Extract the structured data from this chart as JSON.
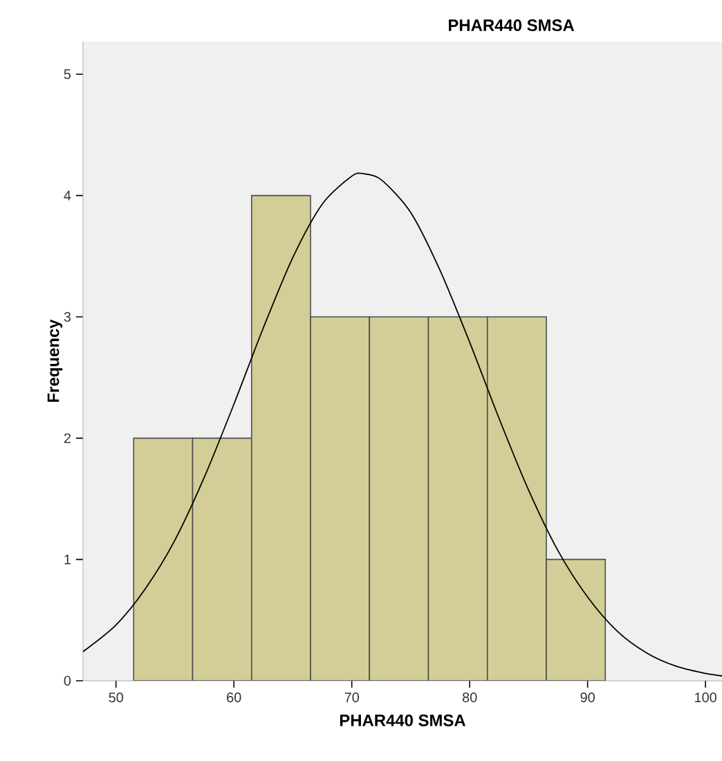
{
  "chart_data": {
    "type": "histogram",
    "title": "PHAR440 SMSA",
    "xlabel": "PHAR440 SMSA",
    "ylabel": "Frequency",
    "xlim": [
      47.2,
      101.4
    ],
    "xticks": [
      50,
      60,
      70,
      80,
      90,
      100
    ],
    "ylim": [
      0,
      5.27
    ],
    "yticks": [
      0,
      1,
      2,
      3,
      4,
      5
    ],
    "grid": false,
    "series": [
      {
        "color": "#d3ce97",
        "bins": [
          51.5,
          56.5,
          61.5,
          66.5,
          71.5,
          76.5,
          81.5,
          86.5,
          91.5
        ],
        "values": [
          2,
          2,
          4,
          3,
          3,
          3,
          3,
          1
        ]
      },
      {
        "type": "line",
        "color": "#000000",
        "x": [
          47.2,
          50,
          52.5,
          55,
          57.5,
          60,
          62.5,
          65,
          67.5,
          70,
          71,
          72.5,
          75,
          77.5,
          80,
          82.5,
          85,
          87.5,
          90,
          92.5,
          95,
          97.5,
          100,
          101.4
        ],
        "values": [
          0.24,
          0.46,
          0.76,
          1.16,
          1.68,
          2.28,
          2.91,
          3.49,
          3.93,
          4.16,
          4.18,
          4.13,
          3.86,
          3.38,
          2.79,
          2.16,
          1.57,
          1.07,
          0.69,
          0.41,
          0.23,
          0.12,
          0.06,
          0.04
        ]
      }
    ]
  }
}
